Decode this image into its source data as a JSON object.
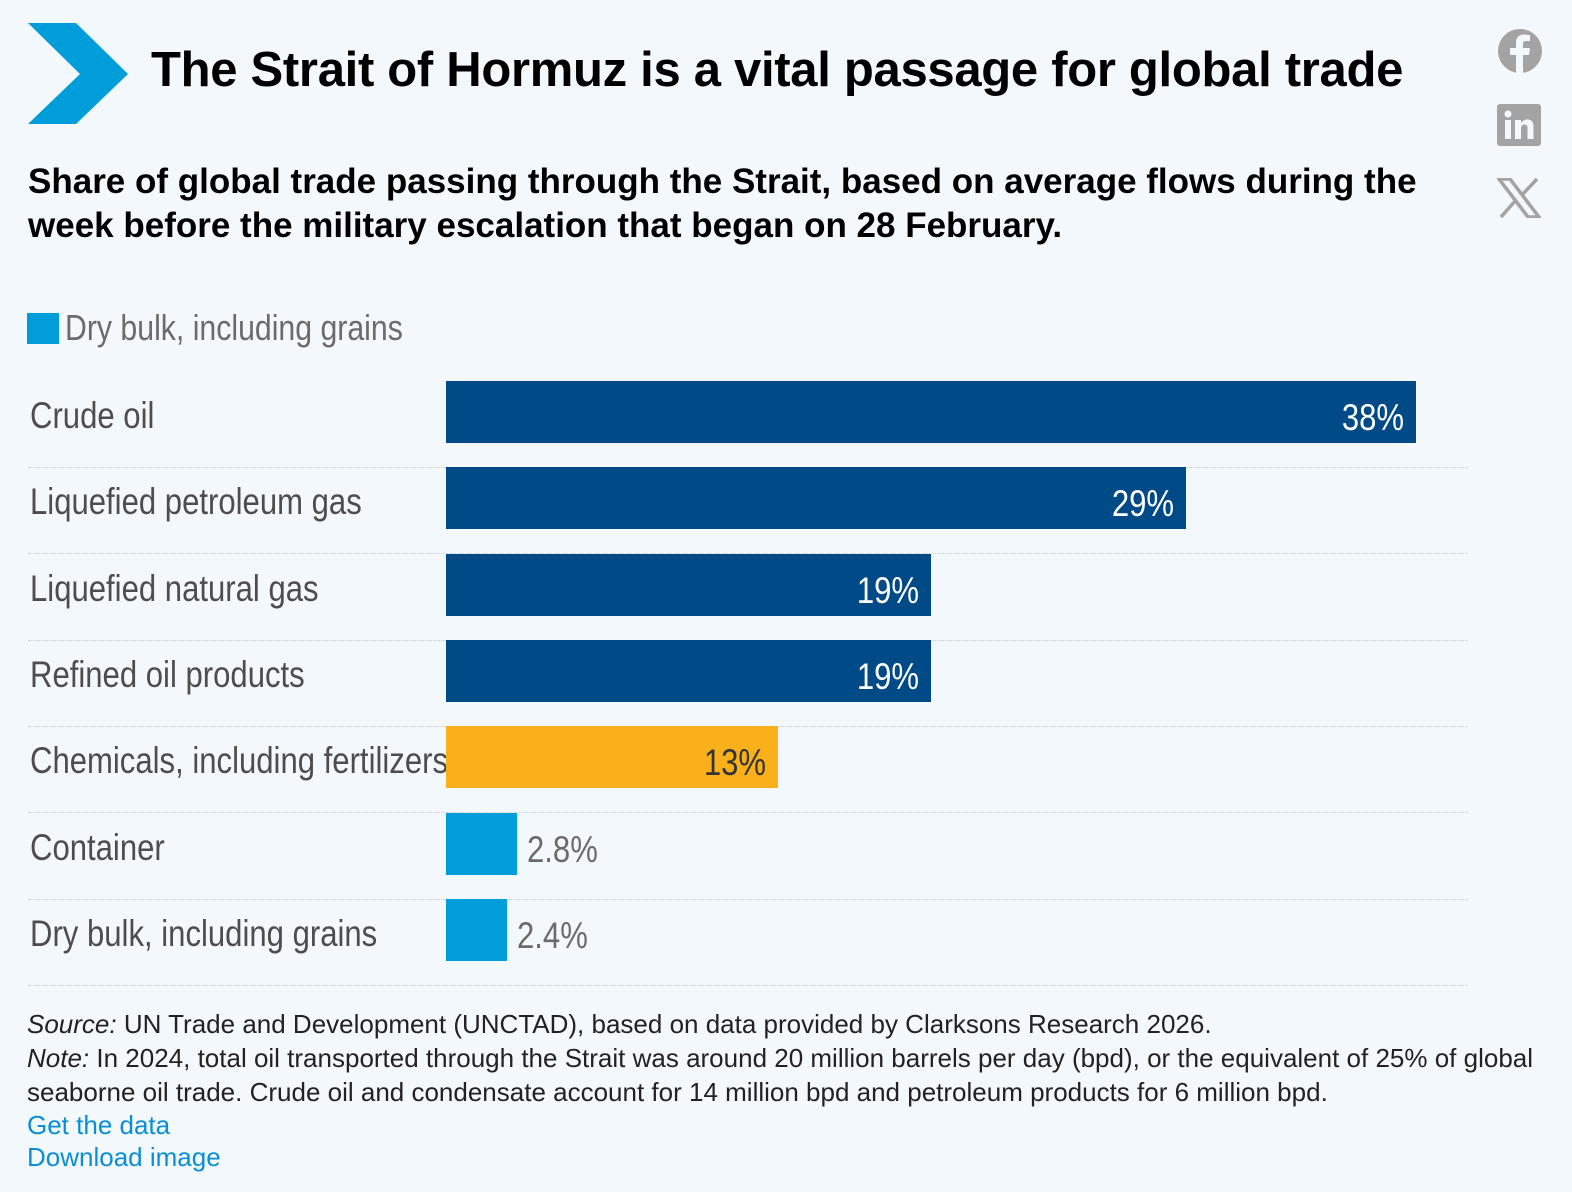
{
  "title": "The Strait of Hormuz is a vital passage for global trade",
  "subtitle": "Share of global trade passing through the Strait, based on average flows during the week before the military escalation that began on 28 February.",
  "colors": {
    "dark_blue": "#004a87",
    "orange": "#f9b01b",
    "light_blue": "#009ddb",
    "background": "#f3f8fc"
  },
  "social": [
    "facebook-icon",
    "linkedin-icon",
    "x-icon"
  ],
  "chart_data": {
    "type": "bar",
    "orientation": "horizontal",
    "legend": [
      "Dry bulk, including grains"
    ],
    "legend_placement": "top-left",
    "categories": [
      "Crude oil",
      "Liquefied petroleum gas",
      "Liquefied natural gas",
      "Refined oil products",
      "Chemicals, including fertilizers",
      "Container",
      "Dry bulk, including grains"
    ],
    "values": [
      38,
      29,
      19,
      19,
      13,
      2.8,
      2.4
    ],
    "labels": [
      "38%",
      "29%",
      "19%",
      "19%",
      "13%",
      "2.8%",
      "2.4%"
    ],
    "bar_colors": [
      "#004a87",
      "#004a87",
      "#004a87",
      "#004a87",
      "#f9b01b",
      "#009ddb",
      "#009ddb"
    ],
    "xlim": [
      0,
      38
    ],
    "grid": false
  },
  "footer": {
    "source_label": "Source:",
    "source_text": " UN Trade and Development (UNCTAD), based on data provided by Clarksons Research 2026.",
    "note_label": "Note:",
    "note_text": " In 2024, total oil transported through the Strait was around 20 million barrels per day (bpd), or the equivalent of 25% of global seaborne oil trade. Crude oil and condensate account for 14 million bpd and petroleum products for 6 million bpd.",
    "get_data": "Get the data",
    "download": "Download image"
  }
}
